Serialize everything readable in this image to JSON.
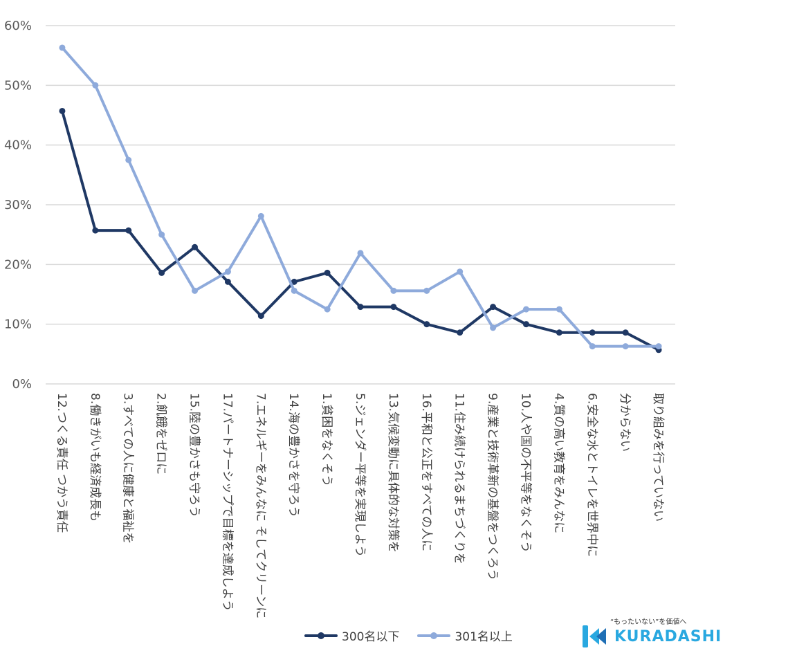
{
  "chart_data": {
    "type": "line",
    "yticks": [
      "0%",
      "10%",
      "20%",
      "30%",
      "40%",
      "50%",
      "60%"
    ],
    "ylim": [
      0,
      60
    ],
    "grid": true,
    "legend_position": "bottom",
    "categories": [
      "12.つくる責任 つかう責任",
      "8.働きがいも経済成長も",
      "3.すべての人に健康と福祉を",
      "2.飢餓をゼロに",
      "15.陸の豊かさも守ろう",
      "17.パートナーシップで目標を達成しよう",
      "7.エネルギーをみんなに そしてクリーンに",
      "14.海の豊かさを守ろう",
      "1.貧困をなくそう",
      "5.ジェンダー平等を実現しよう",
      "13.気候変動に具体的な対策を",
      "16.平和と公正をすべての人に",
      "11.住み続けられるまちづくりを",
      "9.産業と技術革新の基盤をつくろう",
      "10.人や国の不平等をなくそう",
      "4.質の高い教育をみんなに",
      "6.安全な水とトイレを世界中に",
      "分からない",
      "取り組みを行っていない"
    ],
    "series": [
      {
        "name": "300名以下",
        "color": "#1f3864",
        "values": [
          45.7,
          25.7,
          25.7,
          18.6,
          22.9,
          17.1,
          11.4,
          17.1,
          18.6,
          12.9,
          12.9,
          10.0,
          8.6,
          12.9,
          10.0,
          8.6,
          8.6,
          8.6,
          5.7
        ]
      },
      {
        "name": "301名以上",
        "color": "#8eaadb",
        "values": [
          56.3,
          50.0,
          37.5,
          25.0,
          15.6,
          18.8,
          28.1,
          15.6,
          12.5,
          21.9,
          15.6,
          15.6,
          18.8,
          9.4,
          12.5,
          12.5,
          6.3,
          6.3,
          6.3
        ]
      }
    ]
  },
  "logo": {
    "tagline": "“もったいない”を価値へ",
    "wordmark": "KURADASHI",
    "color": "#29a8e0"
  }
}
